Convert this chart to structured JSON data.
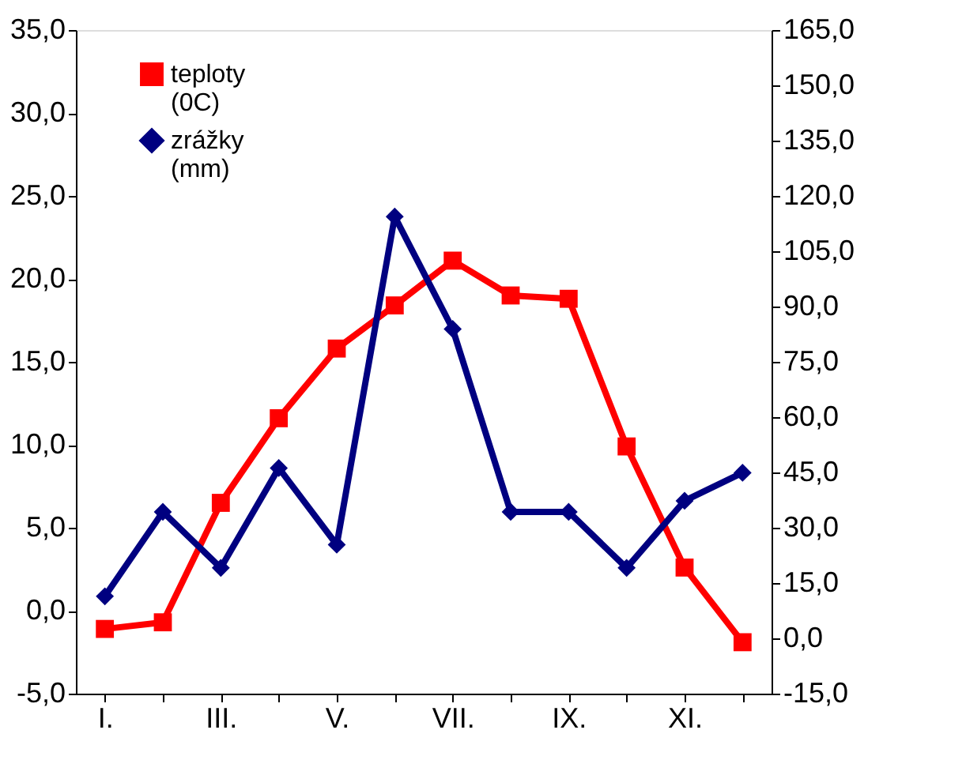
{
  "chart_data": {
    "type": "line",
    "categories": [
      "I.",
      null,
      "III.",
      null,
      "V.",
      null,
      "VII.",
      null,
      "IX.",
      null,
      "XI.",
      null
    ],
    "series": [
      {
        "name": "teploty (0C)",
        "color": "#ff0000",
        "marker": "square",
        "values": [
          -1.1,
          -0.7,
          6.5,
          11.6,
          15.8,
          18.4,
          21.1,
          19.0,
          18.8,
          9.9,
          2.6,
          -1.9
        ]
      },
      {
        "name": "zrážky (mm)",
        "color": "#000080",
        "marker": "diamond",
        "axis": "y2",
        "values": [
          11.4,
          34.3,
          19.1,
          46.2,
          25.4,
          114.4,
          83.9,
          34.3,
          34.3,
          19.1,
          37.3,
          44.9
        ]
      }
    ],
    "ylim": [
      -5,
      35
    ],
    "yticks": [
      {
        "value": -5,
        "label": "-5,0"
      },
      {
        "value": 0,
        "label": "0,0"
      },
      {
        "value": 5,
        "label": "5,0"
      },
      {
        "value": 10,
        "label": "10,0"
      },
      {
        "value": 15,
        "label": "15,0"
      },
      {
        "value": 20,
        "label": "20,0"
      },
      {
        "value": 25,
        "label": "25,0"
      },
      {
        "value": 30,
        "label": "30,0"
      },
      {
        "value": 35,
        "label": "35,0"
      }
    ],
    "y2lim": [
      -15,
      165
    ],
    "y2ticks": [
      {
        "value": -15,
        "label": "-15,0"
      },
      {
        "value": 0,
        "label": "0,0"
      },
      {
        "value": 15,
        "label": "15,0"
      },
      {
        "value": 30,
        "label": "30,0"
      },
      {
        "value": 45,
        "label": "45,0"
      },
      {
        "value": 60,
        "label": "60,0"
      },
      {
        "value": 75,
        "label": "75,0"
      },
      {
        "value": 90,
        "label": "90,0"
      },
      {
        "value": 105,
        "label": "105,0"
      },
      {
        "value": 120,
        "label": "120,0"
      },
      {
        "value": 135,
        "label": "135,0"
      },
      {
        "value": 150,
        "label": "150,0"
      },
      {
        "value": 165,
        "label": "165,0"
      }
    ],
    "grid": false,
    "legend": "top left"
  }
}
